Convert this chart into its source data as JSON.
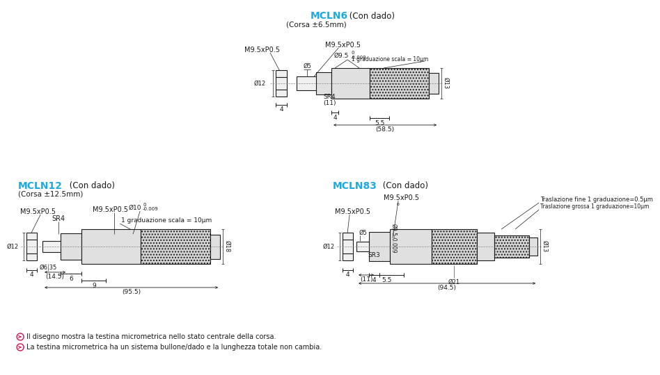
{
  "bg": "#ffffff",
  "cyan": "#1EAADC",
  "black": "#1a1a1a",
  "gray_light": "#F0F0F0",
  "gray_mid": "#E0E0E0",
  "gray_dark": "#C8C8C8",
  "gray_hatch": "#D4D4D4",
  "icon_color": "#CC1155",
  "title_fs": 10,
  "sub_fs": 8.5,
  "corsa_fs": 7.5,
  "lbl_fs": 7,
  "dim_fs": 6.5,
  "small_fs": 5.5,
  "fn_fs": 7,
  "mcln6_t": "MCLN6",
  "mcln6_s": " (Con dado)",
  "mcln6_c": "(Corsa ±6.5mm)",
  "mcln12_t": "MCLN12",
  "mcln12_s": " (Con dado)",
  "mcln12_c": "(Corsa ±12.5mm)",
  "mcln83_t": "MCLN83",
  "mcln83_s": " (Con dado)",
  "fn1": "Il disegno mostra la testina micrometrica nello stato centrale della corsa.",
  "fn2": "La testina micrometrica ha un sistema bullone/dado e la lunghezza totale non cambia.",
  "m9label": "M9.5xP0.5",
  "grad6": "1 graduazione scala = 10μm",
  "grad12": "1 graduazione scala = 10μm",
  "fine83": "Traslazione fine 1 graduazione=0.5μm",
  "grossa83": "Traslazione grossa 1 graduazione=10μm"
}
